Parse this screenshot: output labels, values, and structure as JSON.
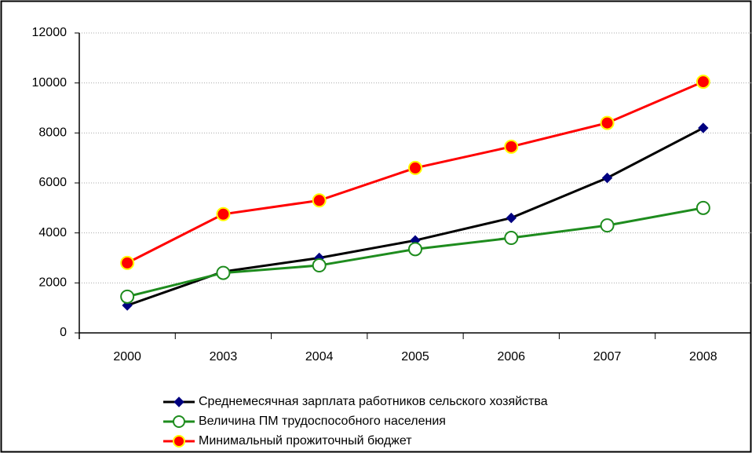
{
  "chart_data": {
    "type": "line",
    "categories": [
      "2000",
      "2003",
      "2004",
      "2005",
      "2006",
      "2007",
      "2008"
    ],
    "series": [
      {
        "name": "Среднемесячная зарплата работников сельского хозяйства",
        "color": "#000000",
        "marker": "diamond",
        "marker_fill": "#000080",
        "marker_stroke": "#000080",
        "values": [
          1100,
          2450,
          3000,
          3700,
          4600,
          6200,
          8200
        ]
      },
      {
        "name": "Величина ПМ трудоспособного населения",
        "color": "#1e8c1e",
        "marker": "circle",
        "marker_fill": "#ffffff",
        "marker_stroke": "#1e8c1e",
        "values": [
          1450,
          2400,
          2700,
          3350,
          3800,
          4300,
          5000
        ]
      },
      {
        "name": "Минимальный прожиточный бюджет",
        "color": "#ff0000",
        "marker": "circle",
        "marker_fill": "#ff0000",
        "marker_stroke": "#ffff00",
        "values": [
          2800,
          4750,
          5300,
          6600,
          7450,
          8400,
          10050
        ]
      }
    ],
    "ylim": [
      0,
      12000
    ],
    "yticks": [
      0,
      2000,
      4000,
      6000,
      8000,
      10000,
      12000
    ],
    "grid": true,
    "legend": "bottom"
  }
}
